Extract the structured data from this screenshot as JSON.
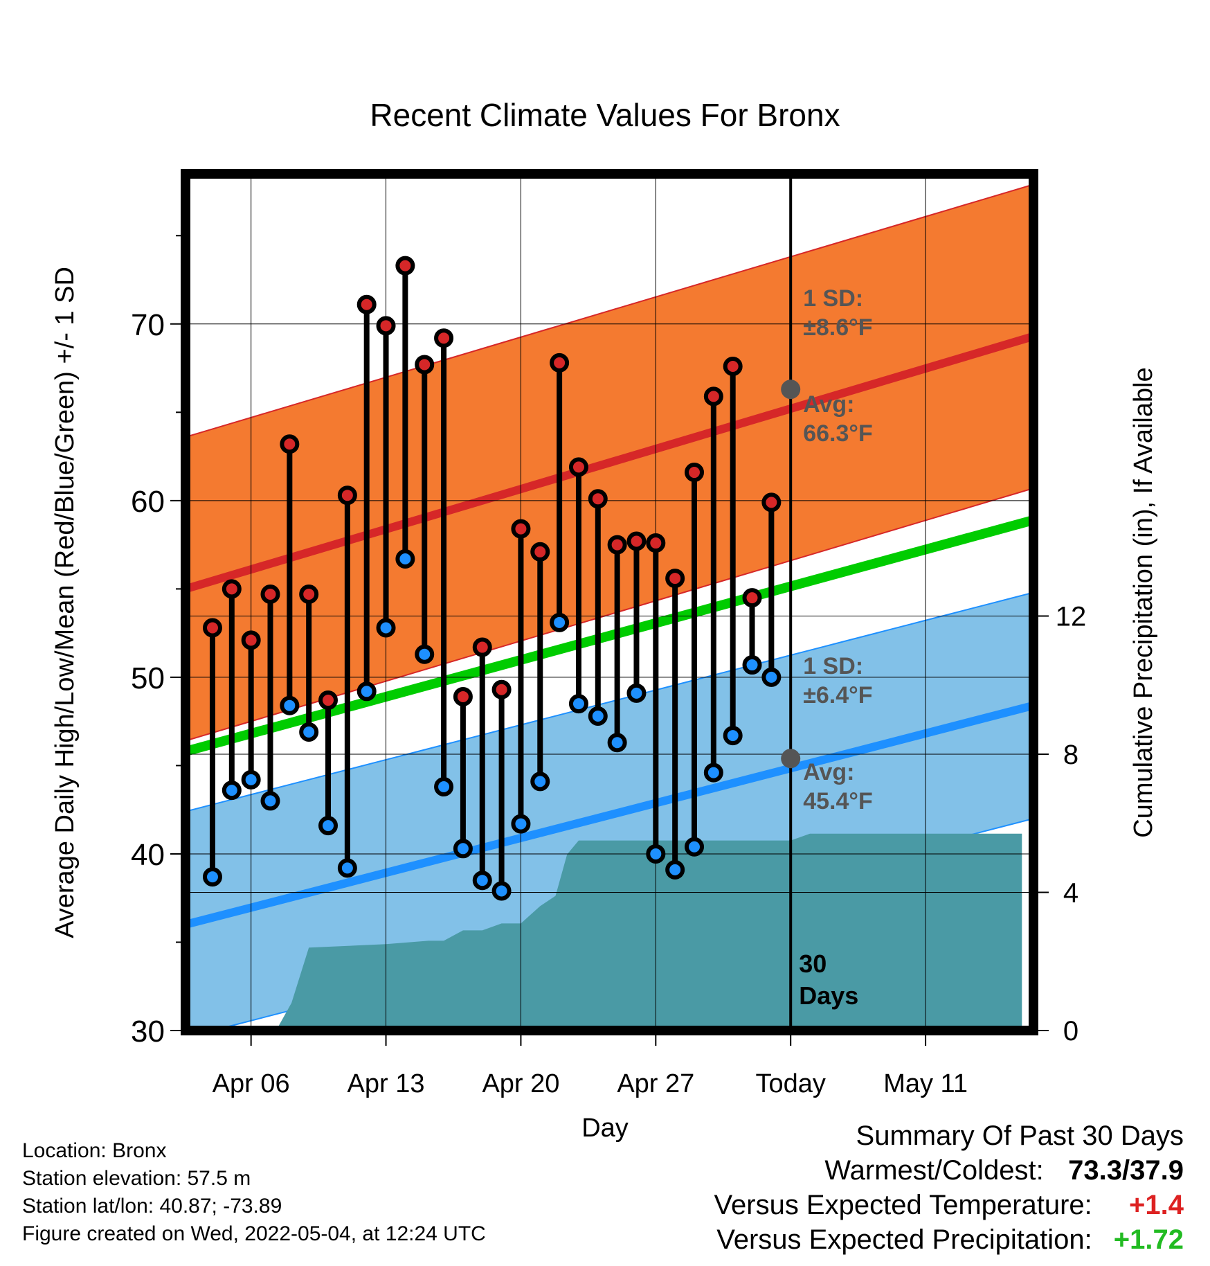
{
  "chart_data": {
    "type": "line",
    "title": "Recent Climate Values For Bronx",
    "xlabel": "Day",
    "ylabel_left": "Average Daily High/Low/Mean (Red/Blue/Green) +/- 1 SD",
    "ylabel_right": "Cumulative Precipitation (in), If Available",
    "x_ticks": [
      "Apr 06",
      "Apr 13",
      "Apr 20",
      "Apr 27",
      "Today",
      "May 11"
    ],
    "y_left_ticks": [
      30,
      40,
      50,
      60,
      70
    ],
    "y_left_range": [
      30,
      78.5
    ],
    "y_right_ticks": [
      0,
      4,
      8,
      12
    ],
    "y_right_range": [
      0,
      24.8
    ],
    "grid": true,
    "today_label": "30\nDays",
    "avg_high_annotation": {
      "sd": "1 SD:\n±8.6°F",
      "avg": "Avg:\n66.3°F",
      "avg_value": 66.3
    },
    "avg_low_annotation": {
      "sd": "1 SD:\n±6.4°F",
      "avg": "Avg:\n45.4°F",
      "avg_value": 45.4
    },
    "normal_high": {
      "start": 55.0,
      "end": 69.3,
      "sd": 8.6
    },
    "normal_low": {
      "start": 36.0,
      "end": 48.4,
      "sd": 6.4
    },
    "normal_mean": {
      "start": 45.8,
      "end": 58.9
    },
    "daily_high": [
      52.8,
      55.0,
      52.1,
      54.7,
      63.2,
      54.7,
      48.7,
      60.3,
      71.1,
      69.9,
      73.3,
      67.7,
      69.2,
      48.9,
      51.7,
      49.3,
      58.4,
      57.1,
      67.8,
      61.9,
      60.1,
      57.5,
      57.7,
      57.6,
      55.6,
      61.6,
      65.9,
      67.6,
      54.5,
      59.9
    ],
    "daily_low": [
      38.7,
      43.6,
      44.2,
      43.0,
      48.4,
      46.9,
      41.6,
      39.2,
      49.2,
      52.8,
      56.7,
      51.3,
      43.8,
      40.3,
      38.5,
      37.9,
      41.7,
      44.1,
      53.1,
      48.5,
      47.8,
      46.3,
      49.1,
      40.0,
      39.1,
      40.4,
      44.6,
      46.7,
      50.7,
      50.0
    ],
    "precip_x": [
      0,
      1.3,
      2.1,
      3.0,
      7.0,
      9.2,
      10.0,
      11.0,
      12.0,
      13.0,
      14.0,
      15.0,
      15.8,
      16.4,
      17.0,
      25.0,
      28.0,
      29.0,
      35.0,
      38.0,
      40.0
    ],
    "precip_y": [
      0,
      0,
      0.8,
      2.4,
      2.5,
      2.6,
      2.6,
      2.9,
      2.9,
      3.1,
      3.1,
      3.6,
      3.9,
      5.1,
      5.5,
      5.5,
      5.5,
      5.7,
      5.7,
      5.7,
      5.7
    ]
  },
  "footer": {
    "location": "Location: Bronx",
    "elevation": "Station elevation: 57.5 m",
    "latlon": "Station lat/lon: 40.87; -73.89",
    "created": "Figure created on Wed, 2022-05-04, at 12:24 UTC"
  },
  "summary": {
    "title": "Summary Of Past 30 Days",
    "warmest_label": "Warmest/Coldest:",
    "warmest_value": "73.3/37.9",
    "temp_label": "Versus Expected Temperature:",
    "temp_value": "+1.4",
    "temp_color": "#dd2222",
    "precip_label": "Versus Expected Precipitation:",
    "precip_value": "+1.72",
    "precip_color": "#22bb22"
  },
  "colors": {
    "high_band": "#f47a30",
    "high_line": "#d62728",
    "low_band": "#82c1e8",
    "low_line": "#1e90ff",
    "mean_line": "#00cc00",
    "precip_fill": "#4a9aa5",
    "high_dot": "#d62728",
    "low_dot": "#1e90ff",
    "annotation": "#555555"
  }
}
